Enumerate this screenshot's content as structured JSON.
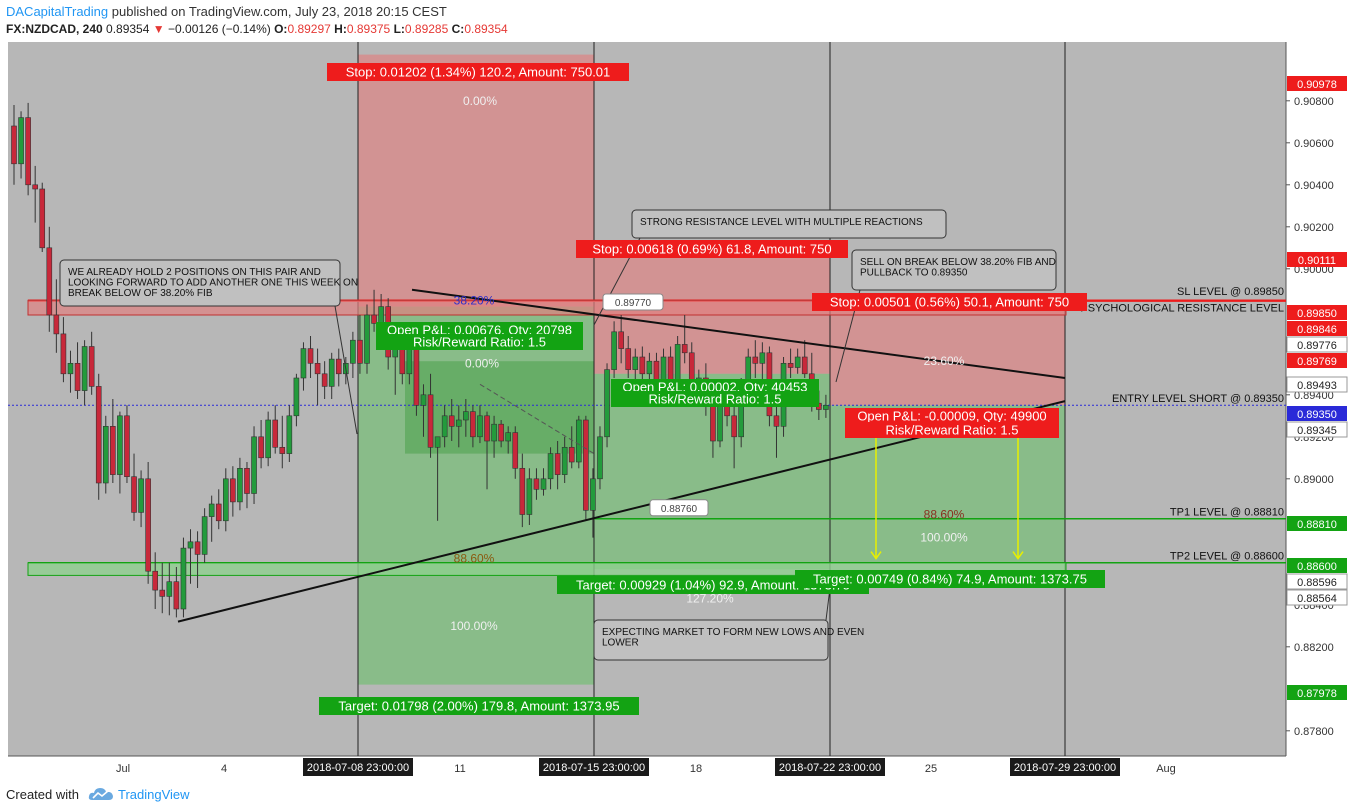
{
  "header": {
    "author": "DACapitalTrading",
    "published": "published on TradingView.com, July 23, 2018 20:15 CEST",
    "symbol": "FX:NZDCAD, 240",
    "last": "0.89354",
    "change": "−0.00126 (−0.14%)",
    "o_label": "O:",
    "o": "0.89297",
    "h_label": "H:",
    "h": "0.89375",
    "l_label": "L:",
    "l": "0.89285",
    "c_label": "C:",
    "c": "0.89354"
  },
  "footer": {
    "created": "Created with",
    "brand": "TradingView"
  },
  "colors": {
    "background": "#b7b7b7",
    "bull": "#239b3c",
    "bear": "#c8283a",
    "stop_zone": "#d88b8b",
    "target_zone": "#7fbd7f",
    "label_red": "#ee1c1c",
    "label_green": "#13a313",
    "entry_line": "#2a2ad8"
  },
  "chart_data": {
    "type": "candlestick",
    "symbol": "FX:NZDCAD",
    "timeframe": "240",
    "y_range": [
      0.8768,
      0.9108
    ],
    "price_ticks": [
      "0.90800",
      "0.90600",
      "0.90400",
      "0.90200",
      "0.90000",
      "0.89400",
      "0.89200",
      "0.89000",
      "0.88400",
      "0.88200",
      "0.87800"
    ],
    "highlighted_prices": [
      {
        "text": "0.90978",
        "value": 0.90978,
        "color": "#ee1c1c"
      },
      {
        "text": "0.90111",
        "value": 0.90111,
        "color": "#ee1c1c"
      },
      {
        "text": "0.89850",
        "value": 0.8985,
        "color": "#ee1c1c"
      },
      {
        "text": "0.89846",
        "value": 0.89846,
        "color": "#ee1c1c"
      },
      {
        "text": "0.89776",
        "value": 0.89776,
        "color": "#ffffff"
      },
      {
        "text": "0.89769",
        "value": 0.89769,
        "color": "#ee1c1c"
      },
      {
        "text": "0.89493",
        "value": 0.89493,
        "color": "#ffffff"
      },
      {
        "text": "0.89350",
        "value": 0.8935,
        "color": "#2a2ad8"
      },
      {
        "text": "0.89345",
        "value": 0.89345,
        "color": "#ffffff"
      },
      {
        "text": "0.88810",
        "value": 0.8881,
        "color": "#13a313"
      },
      {
        "text": "0.88600",
        "value": 0.886,
        "color": "#13a313"
      },
      {
        "text": "0.88596",
        "value": 0.88596,
        "color": "#ffffff"
      },
      {
        "text": "0.88564",
        "value": 0.88564,
        "color": "#ffffff"
      },
      {
        "text": "0.87978",
        "value": 0.87978,
        "color": "#13a313"
      }
    ],
    "time_ticks": [
      "Jul",
      "4",
      "11",
      "18",
      "25",
      "Aug"
    ],
    "highlighted_dates": [
      "2018-07-08 23:00:00",
      "2018-07-15 23:00:00",
      "2018-07-22 23:00:00",
      "2018-07-29 23:00:00"
    ],
    "horizontal_levels": [
      {
        "label": "SL LEVEL @ 0.89850",
        "value": 0.8985,
        "color": "#ee1c1c"
      },
      {
        "label": "PSYCHOLOGICAL RESISTANCE LEVEL",
        "value": 0.89846,
        "color": "#ee1c1c"
      },
      {
        "label": "ENTRY LEVEL SHORT @ 0.89350",
        "value": 0.8935,
        "color": "#2a2ad8"
      },
      {
        "label": "TP1 LEVEL @ 0.88810",
        "value": 0.8881,
        "color": "#13a313"
      },
      {
        "label": "TP2 LEVEL @ 0.88600",
        "value": 0.886,
        "color": "#13a313"
      }
    ],
    "positions": [
      {
        "stop_label": "Stop: 0.01202 (1.34%) 120.2, Amount: 750.01",
        "pnl_label": "Open P&L: 0.00676, Qty: 20798",
        "rr_label": "Risk/Reward Ratio: 1.5",
        "target_label": "Target: 0.01798 (2.00%) 179.8, Amount: 1373.95",
        "entry": 0.8982,
        "stop": 0.9102,
        "target": 0.8802
      },
      {
        "stop_label": "Stop: 0.00618 (0.69%) 61.8, Amount: 750",
        "pnl_label": "Open P&L: 0.00002, Qty: 40453",
        "rr_label": "Risk/Reward Ratio: 1.5",
        "target_label": "Target: 0.00929 (1.04%) 92.9, Amount: 1373.75",
        "entry": 0.895,
        "stop": 0.9012,
        "target": 0.8857
      },
      {
        "stop_label": "Stop: 0.00501 (0.56%) 50.1, Amount: 750",
        "pnl_label": "Open P&L: -0.00009, Qty: 49900",
        "rr_label": "Risk/Reward Ratio: 1.5",
        "target_label": "Target: 0.00749 (0.84%) 74.9, Amount: 1373.75",
        "entry": 0.8935,
        "stop": 0.8985,
        "target": 0.886
      }
    ],
    "fib_labels": [
      "0.00%",
      "38.20%",
      "88.60%",
      "100.00%",
      "127.20%",
      "23.60%"
    ],
    "price_callouts": [
      "0.89770",
      "0.88760"
    ],
    "annotations": [
      "WE ALREADY HOLD 2 POSITIONS ON THIS PAIR AND LOOKING FORWARD TO ADD ANOTHER ONE THIS WEEK ON BREAK BELOW OF 38.20% FIB",
      "STRONG RESISTANCE LEVEL WITH MULTIPLE REACTIONS",
      "SELL ON BREAK BELOW 38.20% FIB AND PULLBACK TO 0.89350",
      "EXPECTING MARKET TO FORM NEW LOWS AND EVEN LOWER"
    ],
    "candles": [
      {
        "o": 0.9068,
        "h": 0.9078,
        "l": 0.904,
        "c": 0.905
      },
      {
        "o": 0.905,
        "h": 0.9075,
        "l": 0.9043,
        "c": 0.9072
      },
      {
        "o": 0.9072,
        "h": 0.9079,
        "l": 0.9035,
        "c": 0.904
      },
      {
        "o": 0.904,
        "h": 0.9049,
        "l": 0.9022,
        "c": 0.9038
      },
      {
        "o": 0.9038,
        "h": 0.9041,
        "l": 0.9008,
        "c": 0.901
      },
      {
        "o": 0.901,
        "h": 0.902,
        "l": 0.897,
        "c": 0.8978
      },
      {
        "o": 0.8978,
        "h": 0.8995,
        "l": 0.896,
        "c": 0.8969
      },
      {
        "o": 0.8969,
        "h": 0.8977,
        "l": 0.8946,
        "c": 0.895
      },
      {
        "o": 0.895,
        "h": 0.8961,
        "l": 0.8941,
        "c": 0.8955
      },
      {
        "o": 0.8955,
        "h": 0.8965,
        "l": 0.8938,
        "c": 0.8942
      },
      {
        "o": 0.8942,
        "h": 0.8966,
        "l": 0.8935,
        "c": 0.8963
      },
      {
        "o": 0.8963,
        "h": 0.897,
        "l": 0.894,
        "c": 0.8944
      },
      {
        "o": 0.8944,
        "h": 0.895,
        "l": 0.889,
        "c": 0.8898
      },
      {
        "o": 0.8898,
        "h": 0.893,
        "l": 0.8893,
        "c": 0.8925
      },
      {
        "o": 0.8925,
        "h": 0.8938,
        "l": 0.8898,
        "c": 0.8902
      },
      {
        "o": 0.8902,
        "h": 0.8932,
        "l": 0.8893,
        "c": 0.893
      },
      {
        "o": 0.893,
        "h": 0.8935,
        "l": 0.8898,
        "c": 0.8901
      },
      {
        "o": 0.8901,
        "h": 0.8912,
        "l": 0.888,
        "c": 0.8884
      },
      {
        "o": 0.8884,
        "h": 0.8904,
        "l": 0.8877,
        "c": 0.89
      },
      {
        "o": 0.89,
        "h": 0.8908,
        "l": 0.885,
        "c": 0.8856
      },
      {
        "o": 0.8856,
        "h": 0.8865,
        "l": 0.8838,
        "c": 0.8847
      },
      {
        "o": 0.8847,
        "h": 0.886,
        "l": 0.8836,
        "c": 0.8844
      },
      {
        "o": 0.8844,
        "h": 0.886,
        "l": 0.8835,
        "c": 0.8851
      },
      {
        "o": 0.8851,
        "h": 0.8858,
        "l": 0.8834,
        "c": 0.8838
      },
      {
        "o": 0.8838,
        "h": 0.8872,
        "l": 0.8834,
        "c": 0.8867
      },
      {
        "o": 0.8867,
        "h": 0.8876,
        "l": 0.885,
        "c": 0.887
      },
      {
        "o": 0.887,
        "h": 0.8875,
        "l": 0.8848,
        "c": 0.8864
      },
      {
        "o": 0.8864,
        "h": 0.8886,
        "l": 0.886,
        "c": 0.8882
      },
      {
        "o": 0.8882,
        "h": 0.8892,
        "l": 0.887,
        "c": 0.8888
      },
      {
        "o": 0.8888,
        "h": 0.8895,
        "l": 0.8876,
        "c": 0.888
      },
      {
        "o": 0.888,
        "h": 0.8905,
        "l": 0.8875,
        "c": 0.89
      },
      {
        "o": 0.89,
        "h": 0.8906,
        "l": 0.8882,
        "c": 0.8889
      },
      {
        "o": 0.8889,
        "h": 0.891,
        "l": 0.8885,
        "c": 0.8905
      },
      {
        "o": 0.8905,
        "h": 0.8908,
        "l": 0.8886,
        "c": 0.8893
      },
      {
        "o": 0.8893,
        "h": 0.8925,
        "l": 0.8888,
        "c": 0.892
      },
      {
        "o": 0.892,
        "h": 0.8928,
        "l": 0.8905,
        "c": 0.891
      },
      {
        "o": 0.891,
        "h": 0.8932,
        "l": 0.8906,
        "c": 0.8928
      },
      {
        "o": 0.8928,
        "h": 0.8935,
        "l": 0.8912,
        "c": 0.8915
      },
      {
        "o": 0.8915,
        "h": 0.893,
        "l": 0.8905,
        "c": 0.8912
      },
      {
        "o": 0.8912,
        "h": 0.8935,
        "l": 0.8908,
        "c": 0.893
      },
      {
        "o": 0.893,
        "h": 0.895,
        "l": 0.8925,
        "c": 0.8948
      },
      {
        "o": 0.8948,
        "h": 0.8965,
        "l": 0.8942,
        "c": 0.8962
      },
      {
        "o": 0.8962,
        "h": 0.8968,
        "l": 0.8948,
        "c": 0.8955
      },
      {
        "o": 0.8955,
        "h": 0.8962,
        "l": 0.8935,
        "c": 0.895
      },
      {
        "o": 0.895,
        "h": 0.8956,
        "l": 0.8938,
        "c": 0.8944
      },
      {
        "o": 0.8944,
        "h": 0.896,
        "l": 0.8938,
        "c": 0.8957
      },
      {
        "o": 0.8957,
        "h": 0.8962,
        "l": 0.8944,
        "c": 0.895
      },
      {
        "o": 0.895,
        "h": 0.8958,
        "l": 0.8945,
        "c": 0.8955
      },
      {
        "o": 0.8955,
        "h": 0.897,
        "l": 0.8948,
        "c": 0.8966
      },
      {
        "o": 0.8966,
        "h": 0.8978,
        "l": 0.895,
        "c": 0.8955
      },
      {
        "o": 0.8955,
        "h": 0.8983,
        "l": 0.895,
        "c": 0.8978
      },
      {
        "o": 0.8978,
        "h": 0.899,
        "l": 0.897,
        "c": 0.8974
      },
      {
        "o": 0.8974,
        "h": 0.8988,
        "l": 0.8968,
        "c": 0.8982
      },
      {
        "o": 0.8982,
        "h": 0.8986,
        "l": 0.8952,
        "c": 0.8958
      },
      {
        "o": 0.8958,
        "h": 0.897,
        "l": 0.894,
        "c": 0.8962
      },
      {
        "o": 0.8962,
        "h": 0.8972,
        "l": 0.8945,
        "c": 0.895
      },
      {
        "o": 0.895,
        "h": 0.897,
        "l": 0.8945,
        "c": 0.8965
      },
      {
        "o": 0.8965,
        "h": 0.8968,
        "l": 0.893,
        "c": 0.8935
      },
      {
        "o": 0.8935,
        "h": 0.8945,
        "l": 0.892,
        "c": 0.894
      },
      {
        "o": 0.894,
        "h": 0.895,
        "l": 0.891,
        "c": 0.8915
      },
      {
        "o": 0.8915,
        "h": 0.892,
        "l": 0.888,
        "c": 0.892
      },
      {
        "o": 0.892,
        "h": 0.8935,
        "l": 0.8915,
        "c": 0.893
      },
      {
        "o": 0.893,
        "h": 0.8938,
        "l": 0.8918,
        "c": 0.8925
      },
      {
        "o": 0.8925,
        "h": 0.8935,
        "l": 0.8915,
        "c": 0.8928
      },
      {
        "o": 0.8928,
        "h": 0.8938,
        "l": 0.892,
        "c": 0.8932
      },
      {
        "o": 0.8932,
        "h": 0.8935,
        "l": 0.8915,
        "c": 0.892
      },
      {
        "o": 0.892,
        "h": 0.8935,
        "l": 0.8917,
        "c": 0.893
      },
      {
        "o": 0.893,
        "h": 0.8932,
        "l": 0.8895,
        "c": 0.8918
      },
      {
        "o": 0.8918,
        "h": 0.893,
        "l": 0.891,
        "c": 0.8926
      },
      {
        "o": 0.8926,
        "h": 0.8928,
        "l": 0.8915,
        "c": 0.8918
      },
      {
        "o": 0.8918,
        "h": 0.8925,
        "l": 0.8912,
        "c": 0.8922
      },
      {
        "o": 0.8922,
        "h": 0.8925,
        "l": 0.89,
        "c": 0.8905
      },
      {
        "o": 0.8905,
        "h": 0.8912,
        "l": 0.8877,
        "c": 0.8883
      },
      {
        "o": 0.8883,
        "h": 0.8905,
        "l": 0.8878,
        "c": 0.89
      },
      {
        "o": 0.89,
        "h": 0.8905,
        "l": 0.889,
        "c": 0.8895
      },
      {
        "o": 0.8895,
        "h": 0.8905,
        "l": 0.8892,
        "c": 0.89
      },
      {
        "o": 0.89,
        "h": 0.8915,
        "l": 0.8895,
        "c": 0.8912
      },
      {
        "o": 0.8912,
        "h": 0.8918,
        "l": 0.8895,
        "c": 0.8902
      },
      {
        "o": 0.8902,
        "h": 0.892,
        "l": 0.8898,
        "c": 0.8915
      },
      {
        "o": 0.8915,
        "h": 0.8925,
        "l": 0.8905,
        "c": 0.8908
      },
      {
        "o": 0.8908,
        "h": 0.893,
        "l": 0.8905,
        "c": 0.8928
      },
      {
        "o": 0.8928,
        "h": 0.893,
        "l": 0.888,
        "c": 0.8885
      },
      {
        "o": 0.8885,
        "h": 0.8905,
        "l": 0.8872,
        "c": 0.89
      },
      {
        "o": 0.89,
        "h": 0.8925,
        "l": 0.8895,
        "c": 0.892
      },
      {
        "o": 0.892,
        "h": 0.8955,
        "l": 0.8915,
        "c": 0.8952
      },
      {
        "o": 0.8952,
        "h": 0.8975,
        "l": 0.8948,
        "c": 0.897
      },
      {
        "o": 0.897,
        "h": 0.8978,
        "l": 0.8955,
        "c": 0.8962
      },
      {
        "o": 0.8962,
        "h": 0.8968,
        "l": 0.8948,
        "c": 0.8952
      },
      {
        "o": 0.8952,
        "h": 0.8962,
        "l": 0.8945,
        "c": 0.8958
      },
      {
        "o": 0.8958,
        "h": 0.8963,
        "l": 0.8944,
        "c": 0.895
      },
      {
        "o": 0.895,
        "h": 0.896,
        "l": 0.8946,
        "c": 0.8956
      },
      {
        "o": 0.8956,
        "h": 0.896,
        "l": 0.894,
        "c": 0.8945
      },
      {
        "o": 0.8945,
        "h": 0.8962,
        "l": 0.8942,
        "c": 0.8958
      },
      {
        "o": 0.8958,
        "h": 0.8963,
        "l": 0.8942,
        "c": 0.8947
      },
      {
        "o": 0.8947,
        "h": 0.8968,
        "l": 0.8944,
        "c": 0.8964
      },
      {
        "o": 0.8964,
        "h": 0.8978,
        "l": 0.8955,
        "c": 0.896
      },
      {
        "o": 0.896,
        "h": 0.8965,
        "l": 0.894,
        "c": 0.8944
      },
      {
        "o": 0.8944,
        "h": 0.8952,
        "l": 0.8935,
        "c": 0.8948
      },
      {
        "o": 0.8948,
        "h": 0.8955,
        "l": 0.893,
        "c": 0.8935
      },
      {
        "o": 0.8935,
        "h": 0.894,
        "l": 0.891,
        "c": 0.8918
      },
      {
        "o": 0.8918,
        "h": 0.894,
        "l": 0.8915,
        "c": 0.8938
      },
      {
        "o": 0.8938,
        "h": 0.8945,
        "l": 0.8925,
        "c": 0.893
      },
      {
        "o": 0.893,
        "h": 0.894,
        "l": 0.8905,
        "c": 0.892
      },
      {
        "o": 0.892,
        "h": 0.8948,
        "l": 0.8915,
        "c": 0.8945
      },
      {
        "o": 0.8945,
        "h": 0.8962,
        "l": 0.894,
        "c": 0.8958
      },
      {
        "o": 0.8958,
        "h": 0.8966,
        "l": 0.8948,
        "c": 0.8955
      },
      {
        "o": 0.8955,
        "h": 0.8965,
        "l": 0.8945,
        "c": 0.896
      },
      {
        "o": 0.896,
        "h": 0.8963,
        "l": 0.8925,
        "c": 0.893
      },
      {
        "o": 0.893,
        "h": 0.8938,
        "l": 0.891,
        "c": 0.8925
      },
      {
        "o": 0.8925,
        "h": 0.8958,
        "l": 0.892,
        "c": 0.8955
      },
      {
        "o": 0.8955,
        "h": 0.8962,
        "l": 0.8948,
        "c": 0.8953
      },
      {
        "o": 0.8953,
        "h": 0.8962,
        "l": 0.895,
        "c": 0.8958
      },
      {
        "o": 0.8958,
        "h": 0.8966,
        "l": 0.8948,
        "c": 0.895
      },
      {
        "o": 0.895,
        "h": 0.896,
        "l": 0.8932,
        "c": 0.8936
      },
      {
        "o": 0.8936,
        "h": 0.8942,
        "l": 0.8928,
        "c": 0.8933
      },
      {
        "o": 0.8933,
        "h": 0.894,
        "l": 0.8929,
        "c": 0.8935
      }
    ]
  }
}
